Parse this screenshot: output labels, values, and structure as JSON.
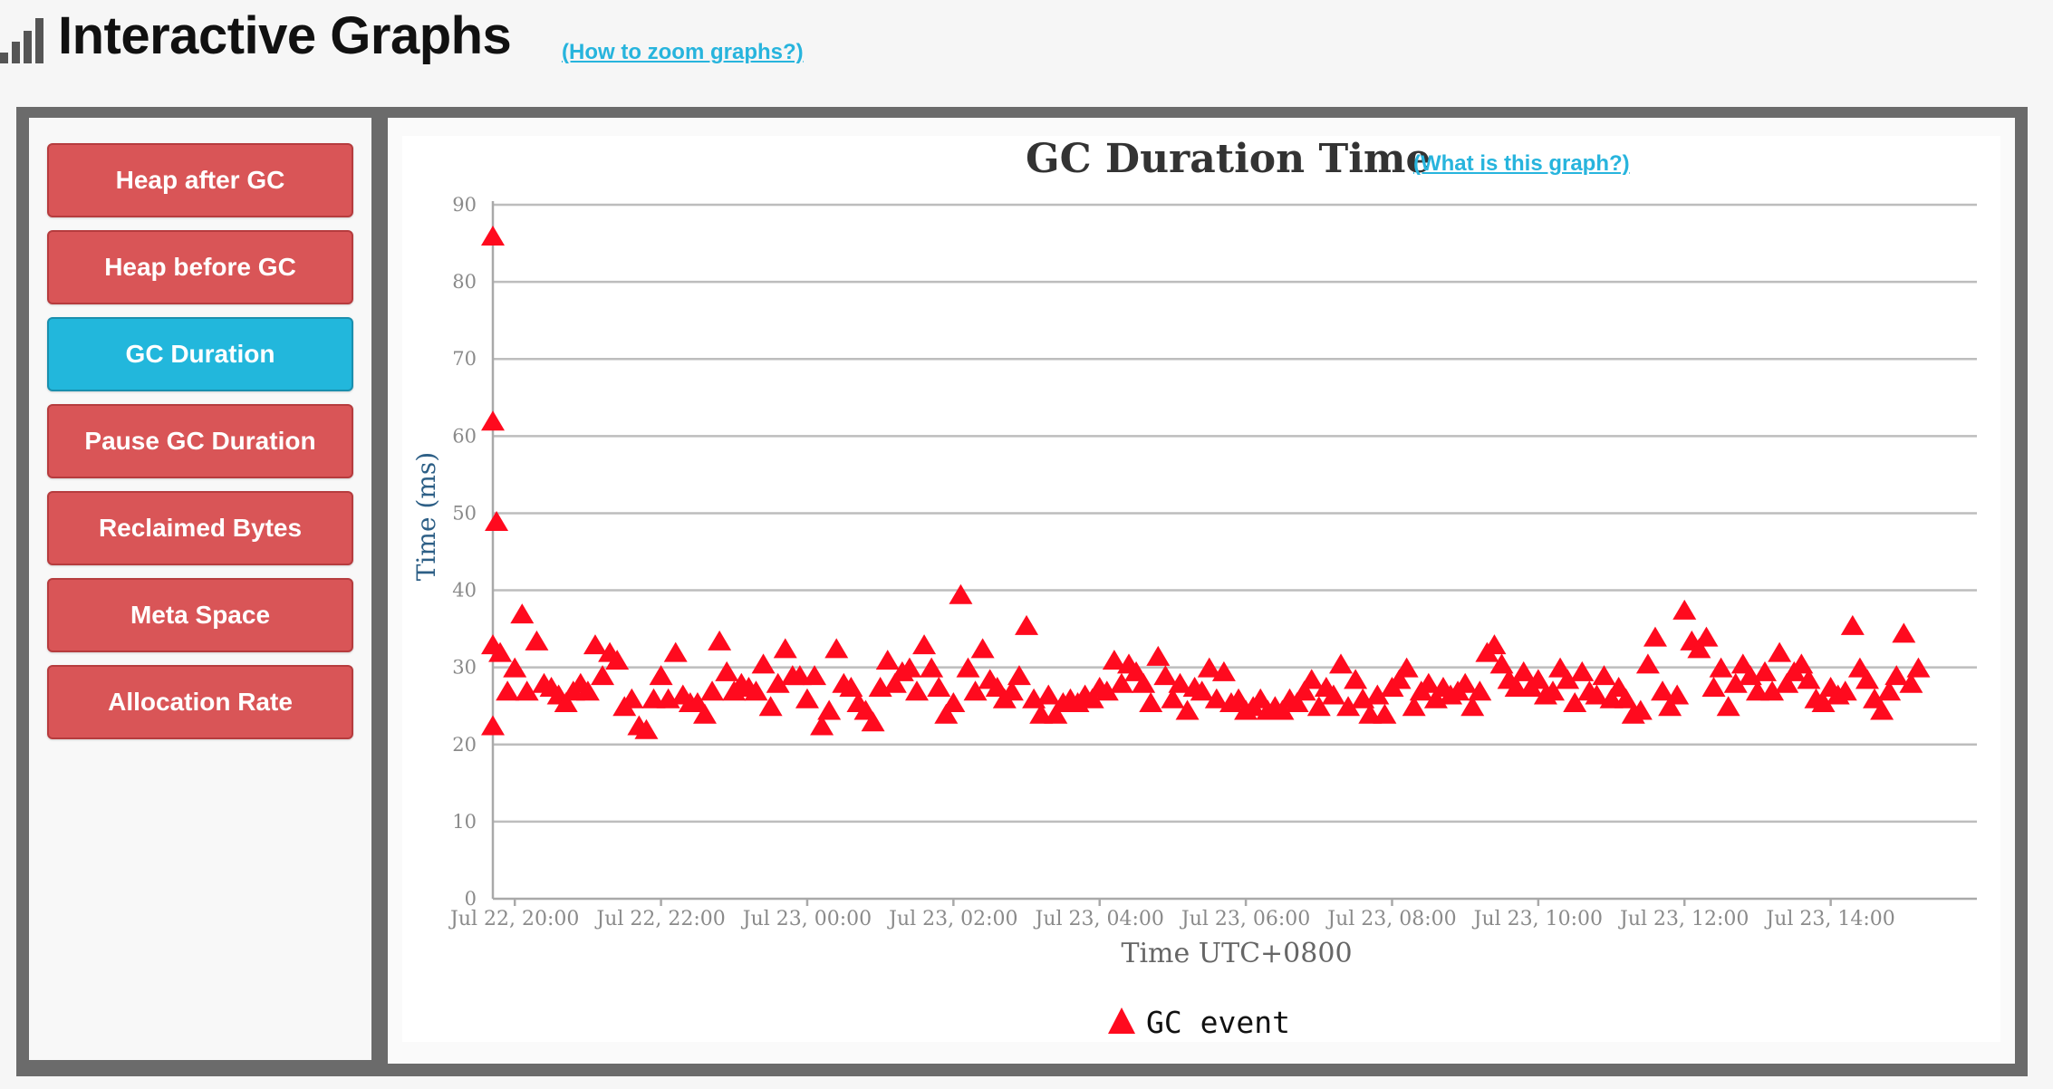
{
  "header": {
    "title": "Interactive Graphs",
    "zoom_link": "(How to zoom graphs?)",
    "logo_icon": "bar-chart-icon"
  },
  "sidebar": {
    "items": [
      {
        "label": "Heap after GC",
        "active": false
      },
      {
        "label": "Heap before GC",
        "active": false
      },
      {
        "label": "GC Duration",
        "active": true
      },
      {
        "label": "Pause GC Duration",
        "active": false
      },
      {
        "label": "Reclaimed Bytes",
        "active": false
      },
      {
        "label": "Meta Space",
        "active": false
      },
      {
        "label": "Allocation Rate",
        "active": false
      }
    ]
  },
  "colors": {
    "button": "#d95557",
    "button_active": "#22b7dc",
    "marker": "#ff0a1e",
    "link": "#27b4dd"
  },
  "chart": {
    "help_link": "(What is this graph?)"
  },
  "chart_data": {
    "type": "scatter",
    "title": "GC Duration Time",
    "xlabel": "Time UTC+0800",
    "ylabel": "Time (ms)",
    "ylim": [
      0,
      90
    ],
    "xlim": [
      "Jul 22, 19:42",
      "Jul 23, 16:00"
    ],
    "grid": true,
    "legend_position": "bottom-center",
    "yticks": [
      0,
      10,
      20,
      30,
      40,
      50,
      60,
      70,
      80,
      90
    ],
    "xticks": [
      {
        "t": "Jul 22, 20:00",
        "label": "Jul 22, 20:00"
      },
      {
        "t": "Jul 22, 22:00",
        "label": "Jul 22, 22:00"
      },
      {
        "t": "Jul 23, 00:00",
        "label": "Jul 23, 00:00"
      },
      {
        "t": "Jul 23, 02:00",
        "label": "Jul 23, 02:00"
      },
      {
        "t": "Jul 23, 04:00",
        "label": "Jul 23, 04:00"
      },
      {
        "t": "Jul 23, 06:00",
        "label": "Jul 23, 06:00"
      },
      {
        "t": "Jul 23, 08:00",
        "label": "Jul 23, 08:00"
      },
      {
        "t": "Jul 23, 10:00",
        "label": "Jul 23, 10:00"
      },
      {
        "t": "Jul 23, 12:00",
        "label": "Jul 23, 12:00"
      },
      {
        "t": "Jul 23, 14:00",
        "label": "Jul 23, 14:00"
      }
    ],
    "series": [
      {
        "name": "GC event",
        "marker": "triangle",
        "points": [
          {
            "x": "Jul 22, 19:42",
            "y": 86
          },
          {
            "x": "Jul 22, 19:42",
            "y": 62
          },
          {
            "x": "Jul 22, 19:42",
            "y": 33
          },
          {
            "x": "Jul 22, 19:42",
            "y": 22.5
          },
          {
            "x": "Jul 22, 19:45",
            "y": 49
          },
          {
            "x": "Jul 22, 19:48",
            "y": 32
          },
          {
            "x": "Jul 22, 19:54",
            "y": 27
          },
          {
            "x": "Jul 22, 20:00",
            "y": 30
          },
          {
            "x": "Jul 22, 20:06",
            "y": 37
          },
          {
            "x": "Jul 22, 20:10",
            "y": 27
          },
          {
            "x": "Jul 22, 20:18",
            "y": 33.5
          },
          {
            "x": "Jul 22, 20:24",
            "y": 28
          },
          {
            "x": "Jul 22, 20:30",
            "y": 27.5
          },
          {
            "x": "Jul 22, 20:36",
            "y": 26.5
          },
          {
            "x": "Jul 22, 20:42",
            "y": 25.5
          },
          {
            "x": "Jul 22, 20:48",
            "y": 27
          },
          {
            "x": "Jul 22, 20:54",
            "y": 28
          },
          {
            "x": "Jul 22, 21:00",
            "y": 27
          },
          {
            "x": "Jul 22, 21:06",
            "y": 33
          },
          {
            "x": "Jul 22, 21:12",
            "y": 29
          },
          {
            "x": "Jul 22, 21:18",
            "y": 32
          },
          {
            "x": "Jul 22, 21:24",
            "y": 31
          },
          {
            "x": "Jul 22, 21:30",
            "y": 25
          },
          {
            "x": "Jul 22, 21:36",
            "y": 26
          },
          {
            "x": "Jul 22, 21:42",
            "y": 22.5
          },
          {
            "x": "Jul 22, 21:48",
            "y": 22
          },
          {
            "x": "Jul 22, 21:54",
            "y": 26
          },
          {
            "x": "Jul 22, 22:00",
            "y": 29
          },
          {
            "x": "Jul 22, 22:06",
            "y": 26
          },
          {
            "x": "Jul 22, 22:12",
            "y": 32
          },
          {
            "x": "Jul 22, 22:18",
            "y": 26.5
          },
          {
            "x": "Jul 22, 22:24",
            "y": 25.5
          },
          {
            "x": "Jul 22, 22:30",
            "y": 25.5
          },
          {
            "x": "Jul 22, 22:36",
            "y": 24
          },
          {
            "x": "Jul 22, 22:42",
            "y": 27
          },
          {
            "x": "Jul 22, 22:48",
            "y": 33.5
          },
          {
            "x": "Jul 22, 22:54",
            "y": 29.5
          },
          {
            "x": "Jul 22, 23:00",
            "y": 27
          },
          {
            "x": "Jul 22, 23:06",
            "y": 28
          },
          {
            "x": "Jul 22, 23:12",
            "y": 27.5
          },
          {
            "x": "Jul 22, 23:18",
            "y": 27
          },
          {
            "x": "Jul 22, 23:24",
            "y": 30.5
          },
          {
            "x": "Jul 22, 23:30",
            "y": 25
          },
          {
            "x": "Jul 22, 23:36",
            "y": 28
          },
          {
            "x": "Jul 22, 23:42",
            "y": 32.5
          },
          {
            "x": "Jul 22, 23:48",
            "y": 29
          },
          {
            "x": "Jul 22, 23:54",
            "y": 29
          },
          {
            "x": "Jul 23, 00:00",
            "y": 26
          },
          {
            "x": "Jul 23, 00:06",
            "y": 29
          },
          {
            "x": "Jul 23, 00:12",
            "y": 22.5
          },
          {
            "x": "Jul 23, 00:18",
            "y": 24.5
          },
          {
            "x": "Jul 23, 00:24",
            "y": 32.5
          },
          {
            "x": "Jul 23, 00:30",
            "y": 28
          },
          {
            "x": "Jul 23, 00:36",
            "y": 27.5
          },
          {
            "x": "Jul 23, 00:42",
            "y": 25.5
          },
          {
            "x": "Jul 23, 00:48",
            "y": 24.5
          },
          {
            "x": "Jul 23, 00:54",
            "y": 23
          },
          {
            "x": "Jul 23, 01:00",
            "y": 27.5
          },
          {
            "x": "Jul 23, 01:06",
            "y": 31
          },
          {
            "x": "Jul 23, 01:12",
            "y": 28
          },
          {
            "x": "Jul 23, 01:18",
            "y": 29.5
          },
          {
            "x": "Jul 23, 01:24",
            "y": 30
          },
          {
            "x": "Jul 23, 01:30",
            "y": 27
          },
          {
            "x": "Jul 23, 01:36",
            "y": 33
          },
          {
            "x": "Jul 23, 01:42",
            "y": 30
          },
          {
            "x": "Jul 23, 01:48",
            "y": 27.5
          },
          {
            "x": "Jul 23, 01:54",
            "y": 24
          },
          {
            "x": "Jul 23, 02:00",
            "y": 25.5
          },
          {
            "x": "Jul 23, 02:06",
            "y": 39.5
          },
          {
            "x": "Jul 23, 02:12",
            "y": 30
          },
          {
            "x": "Jul 23, 02:18",
            "y": 27
          },
          {
            "x": "Jul 23, 02:24",
            "y": 32.5
          },
          {
            "x": "Jul 23, 02:30",
            "y": 28.5
          },
          {
            "x": "Jul 23, 02:36",
            "y": 27.5
          },
          {
            "x": "Jul 23, 02:42",
            "y": 26
          },
          {
            "x": "Jul 23, 02:48",
            "y": 27
          },
          {
            "x": "Jul 23, 02:54",
            "y": 29
          },
          {
            "x": "Jul 23, 03:00",
            "y": 35.5
          },
          {
            "x": "Jul 23, 03:06",
            "y": 26
          },
          {
            "x": "Jul 23, 03:12",
            "y": 24
          },
          {
            "x": "Jul 23, 03:18",
            "y": 26.5
          },
          {
            "x": "Jul 23, 03:24",
            "y": 24
          },
          {
            "x": "Jul 23, 03:30",
            "y": 25.5
          },
          {
            "x": "Jul 23, 03:36",
            "y": 26
          },
          {
            "x": "Jul 23, 03:42",
            "y": 25.5
          },
          {
            "x": "Jul 23, 03:48",
            "y": 26.5
          },
          {
            "x": "Jul 23, 03:54",
            "y": 26
          },
          {
            "x": "Jul 23, 04:00",
            "y": 27.5
          },
          {
            "x": "Jul 23, 04:06",
            "y": 27
          },
          {
            "x": "Jul 23, 04:12",
            "y": 31
          },
          {
            "x": "Jul 23, 04:18",
            "y": 28
          },
          {
            "x": "Jul 23, 04:24",
            "y": 30.5
          },
          {
            "x": "Jul 23, 04:30",
            "y": 29.5
          },
          {
            "x": "Jul 23, 04:36",
            "y": 28
          },
          {
            "x": "Jul 23, 04:42",
            "y": 25.5
          },
          {
            "x": "Jul 23, 04:48",
            "y": 31.5
          },
          {
            "x": "Jul 23, 04:54",
            "y": 29
          },
          {
            "x": "Jul 23, 05:00",
            "y": 26
          },
          {
            "x": "Jul 23, 05:06",
            "y": 28
          },
          {
            "x": "Jul 23, 05:12",
            "y": 24.5
          },
          {
            "x": "Jul 23, 05:18",
            "y": 27.5
          },
          {
            "x": "Jul 23, 05:24",
            "y": 27
          },
          {
            "x": "Jul 23, 05:30",
            "y": 30
          },
          {
            "x": "Jul 23, 05:36",
            "y": 26
          },
          {
            "x": "Jul 23, 05:42",
            "y": 29.5
          },
          {
            "x": "Jul 23, 05:48",
            "y": 25.5
          },
          {
            "x": "Jul 23, 05:54",
            "y": 26
          },
          {
            "x": "Jul 23, 06:00",
            "y": 24.5
          },
          {
            "x": "Jul 23, 06:06",
            "y": 25
          },
          {
            "x": "Jul 23, 06:12",
            "y": 26
          },
          {
            "x": "Jul 23, 06:18",
            "y": 24.5
          },
          {
            "x": "Jul 23, 06:24",
            "y": 25
          },
          {
            "x": "Jul 23, 06:30",
            "y": 24.5
          },
          {
            "x": "Jul 23, 06:36",
            "y": 26
          },
          {
            "x": "Jul 23, 06:42",
            "y": 25.5
          },
          {
            "x": "Jul 23, 06:48",
            "y": 27
          },
          {
            "x": "Jul 23, 06:54",
            "y": 28.5
          },
          {
            "x": "Jul 23, 07:00",
            "y": 25
          },
          {
            "x": "Jul 23, 07:06",
            "y": 27.5
          },
          {
            "x": "Jul 23, 07:12",
            "y": 26.5
          },
          {
            "x": "Jul 23, 07:18",
            "y": 30.5
          },
          {
            "x": "Jul 23, 07:24",
            "y": 25
          },
          {
            "x": "Jul 23, 07:30",
            "y": 28.5
          },
          {
            "x": "Jul 23, 07:36",
            "y": 26
          },
          {
            "x": "Jul 23, 07:42",
            "y": 24
          },
          {
            "x": "Jul 23, 07:48",
            "y": 26.5
          },
          {
            "x": "Jul 23, 07:54",
            "y": 24
          },
          {
            "x": "Jul 23, 08:00",
            "y": 27.5
          },
          {
            "x": "Jul 23, 08:06",
            "y": 28.5
          },
          {
            "x": "Jul 23, 08:12",
            "y": 30
          },
          {
            "x": "Jul 23, 08:18",
            "y": 25
          },
          {
            "x": "Jul 23, 08:24",
            "y": 27
          },
          {
            "x": "Jul 23, 08:30",
            "y": 28
          },
          {
            "x": "Jul 23, 08:36",
            "y": 26
          },
          {
            "x": "Jul 23, 08:42",
            "y": 27.5
          },
          {
            "x": "Jul 23, 08:48",
            "y": 26.5
          },
          {
            "x": "Jul 23, 08:54",
            "y": 27
          },
          {
            "x": "Jul 23, 09:00",
            "y": 28
          },
          {
            "x": "Jul 23, 09:06",
            "y": 25
          },
          {
            "x": "Jul 23, 09:12",
            "y": 27
          },
          {
            "x": "Jul 23, 09:18",
            "y": 32
          },
          {
            "x": "Jul 23, 09:24",
            "y": 33
          },
          {
            "x": "Jul 23, 09:30",
            "y": 30.5
          },
          {
            "x": "Jul 23, 09:36",
            "y": 28.5
          },
          {
            "x": "Jul 23, 09:42",
            "y": 27.5
          },
          {
            "x": "Jul 23, 09:48",
            "y": 29.5
          },
          {
            "x": "Jul 23, 09:54",
            "y": 27.5
          },
          {
            "x": "Jul 23, 10:00",
            "y": 28.5
          },
          {
            "x": "Jul 23, 10:06",
            "y": 26.5
          },
          {
            "x": "Jul 23, 10:12",
            "y": 27
          },
          {
            "x": "Jul 23, 10:18",
            "y": 30
          },
          {
            "x": "Jul 23, 10:24",
            "y": 28.5
          },
          {
            "x": "Jul 23, 10:30",
            "y": 25.5
          },
          {
            "x": "Jul 23, 10:36",
            "y": 29.5
          },
          {
            "x": "Jul 23, 10:42",
            "y": 27
          },
          {
            "x": "Jul 23, 10:48",
            "y": 26.5
          },
          {
            "x": "Jul 23, 10:54",
            "y": 29
          },
          {
            "x": "Jul 23, 11:00",
            "y": 26
          },
          {
            "x": "Jul 23, 11:06",
            "y": 27.5
          },
          {
            "x": "Jul 23, 11:12",
            "y": 26
          },
          {
            "x": "Jul 23, 11:18",
            "y": 24
          },
          {
            "x": "Jul 23, 11:24",
            "y": 24.5
          },
          {
            "x": "Jul 23, 11:30",
            "y": 30.5
          },
          {
            "x": "Jul 23, 11:36",
            "y": 34
          },
          {
            "x": "Jul 23, 11:42",
            "y": 27
          },
          {
            "x": "Jul 23, 11:48",
            "y": 25
          },
          {
            "x": "Jul 23, 11:54",
            "y": 26.5
          },
          {
            "x": "Jul 23, 12:00",
            "y": 37.5
          },
          {
            "x": "Jul 23, 12:06",
            "y": 33.5
          },
          {
            "x": "Jul 23, 12:12",
            "y": 32.5
          },
          {
            "x": "Jul 23, 12:18",
            "y": 34
          },
          {
            "x": "Jul 23, 12:24",
            "y": 27.5
          },
          {
            "x": "Jul 23, 12:30",
            "y": 30
          },
          {
            "x": "Jul 23, 12:36",
            "y": 25
          },
          {
            "x": "Jul 23, 12:42",
            "y": 28
          },
          {
            "x": "Jul 23, 12:48",
            "y": 30.5
          },
          {
            "x": "Jul 23, 12:54",
            "y": 29
          },
          {
            "x": "Jul 23, 13:00",
            "y": 27
          },
          {
            "x": "Jul 23, 13:06",
            "y": 29.5
          },
          {
            "x": "Jul 23, 13:12",
            "y": 27
          },
          {
            "x": "Jul 23, 13:18",
            "y": 32
          },
          {
            "x": "Jul 23, 13:24",
            "y": 28
          },
          {
            "x": "Jul 23, 13:30",
            "y": 29.5
          },
          {
            "x": "Jul 23, 13:36",
            "y": 30.5
          },
          {
            "x": "Jul 23, 13:42",
            "y": 28.5
          },
          {
            "x": "Jul 23, 13:48",
            "y": 26
          },
          {
            "x": "Jul 23, 13:54",
            "y": 25.5
          },
          {
            "x": "Jul 23, 14:00",
            "y": 27.5
          },
          {
            "x": "Jul 23, 14:06",
            "y": 26.5
          },
          {
            "x": "Jul 23, 14:12",
            "y": 27
          },
          {
            "x": "Jul 23, 14:18",
            "y": 35.5
          },
          {
            "x": "Jul 23, 14:24",
            "y": 30
          },
          {
            "x": "Jul 23, 14:30",
            "y": 28.5
          },
          {
            "x": "Jul 23, 14:36",
            "y": 26
          },
          {
            "x": "Jul 23, 14:42",
            "y": 24.5
          },
          {
            "x": "Jul 23, 14:48",
            "y": 27
          },
          {
            "x": "Jul 23, 14:54",
            "y": 29
          },
          {
            "x": "Jul 23, 15:00",
            "y": 34.5
          },
          {
            "x": "Jul 23, 15:06",
            "y": 28
          },
          {
            "x": "Jul 23, 15:12",
            "y": 30
          }
        ]
      }
    ]
  }
}
